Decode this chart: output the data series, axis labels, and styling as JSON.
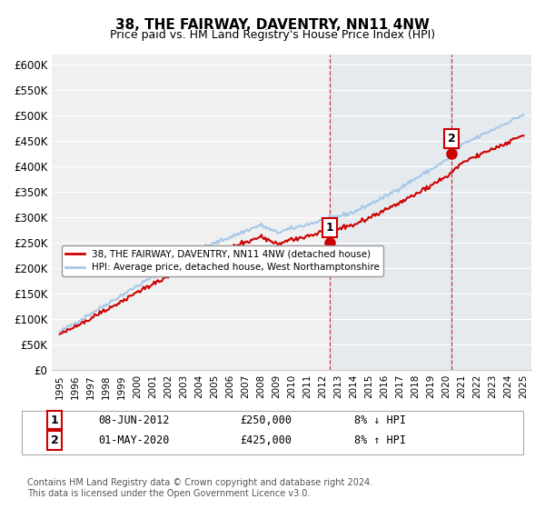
{
  "title": "38, THE FAIRWAY, DAVENTRY, NN11 4NW",
  "subtitle": "Price paid vs. HM Land Registry's House Price Index (HPI)",
  "ylabel_ticks": [
    "£0",
    "£50K",
    "£100K",
    "£150K",
    "£200K",
    "£250K",
    "£300K",
    "£350K",
    "£400K",
    "£450K",
    "£500K",
    "£550K",
    "£600K"
  ],
  "ylim": [
    0,
    620000
  ],
  "ytick_vals": [
    0,
    50000,
    100000,
    150000,
    200000,
    250000,
    300000,
    350000,
    400000,
    450000,
    500000,
    550000,
    600000
  ],
  "xlim_start": 1994.5,
  "xlim_end": 2025.5,
  "sale1_x": 2012.44,
  "sale1_y": 250000,
  "sale1_label": "1",
  "sale2_x": 2020.33,
  "sale2_y": 425000,
  "sale2_label": "2",
  "line_color_hpi": "#a8c8e8",
  "line_color_paid": "#cc0000",
  "legend_paid": "38, THE FAIRWAY, DAVENTRY, NN11 4NW (detached house)",
  "legend_hpi": "HPI: Average price, detached house, West Northamptonshire",
  "annotation1": [
    "1",
    "08-JUN-2012",
    "£250,000",
    "8% ↓ HPI"
  ],
  "annotation2": [
    "2",
    "01-MAY-2020",
    "£425,000",
    "8% ↑ HPI"
  ],
  "footer": "Contains HM Land Registry data © Crown copyright and database right 2024.\nThis data is licensed under the Open Government Licence v3.0.",
  "background_color": "#ffffff",
  "plot_bg_color": "#f0f0f0"
}
